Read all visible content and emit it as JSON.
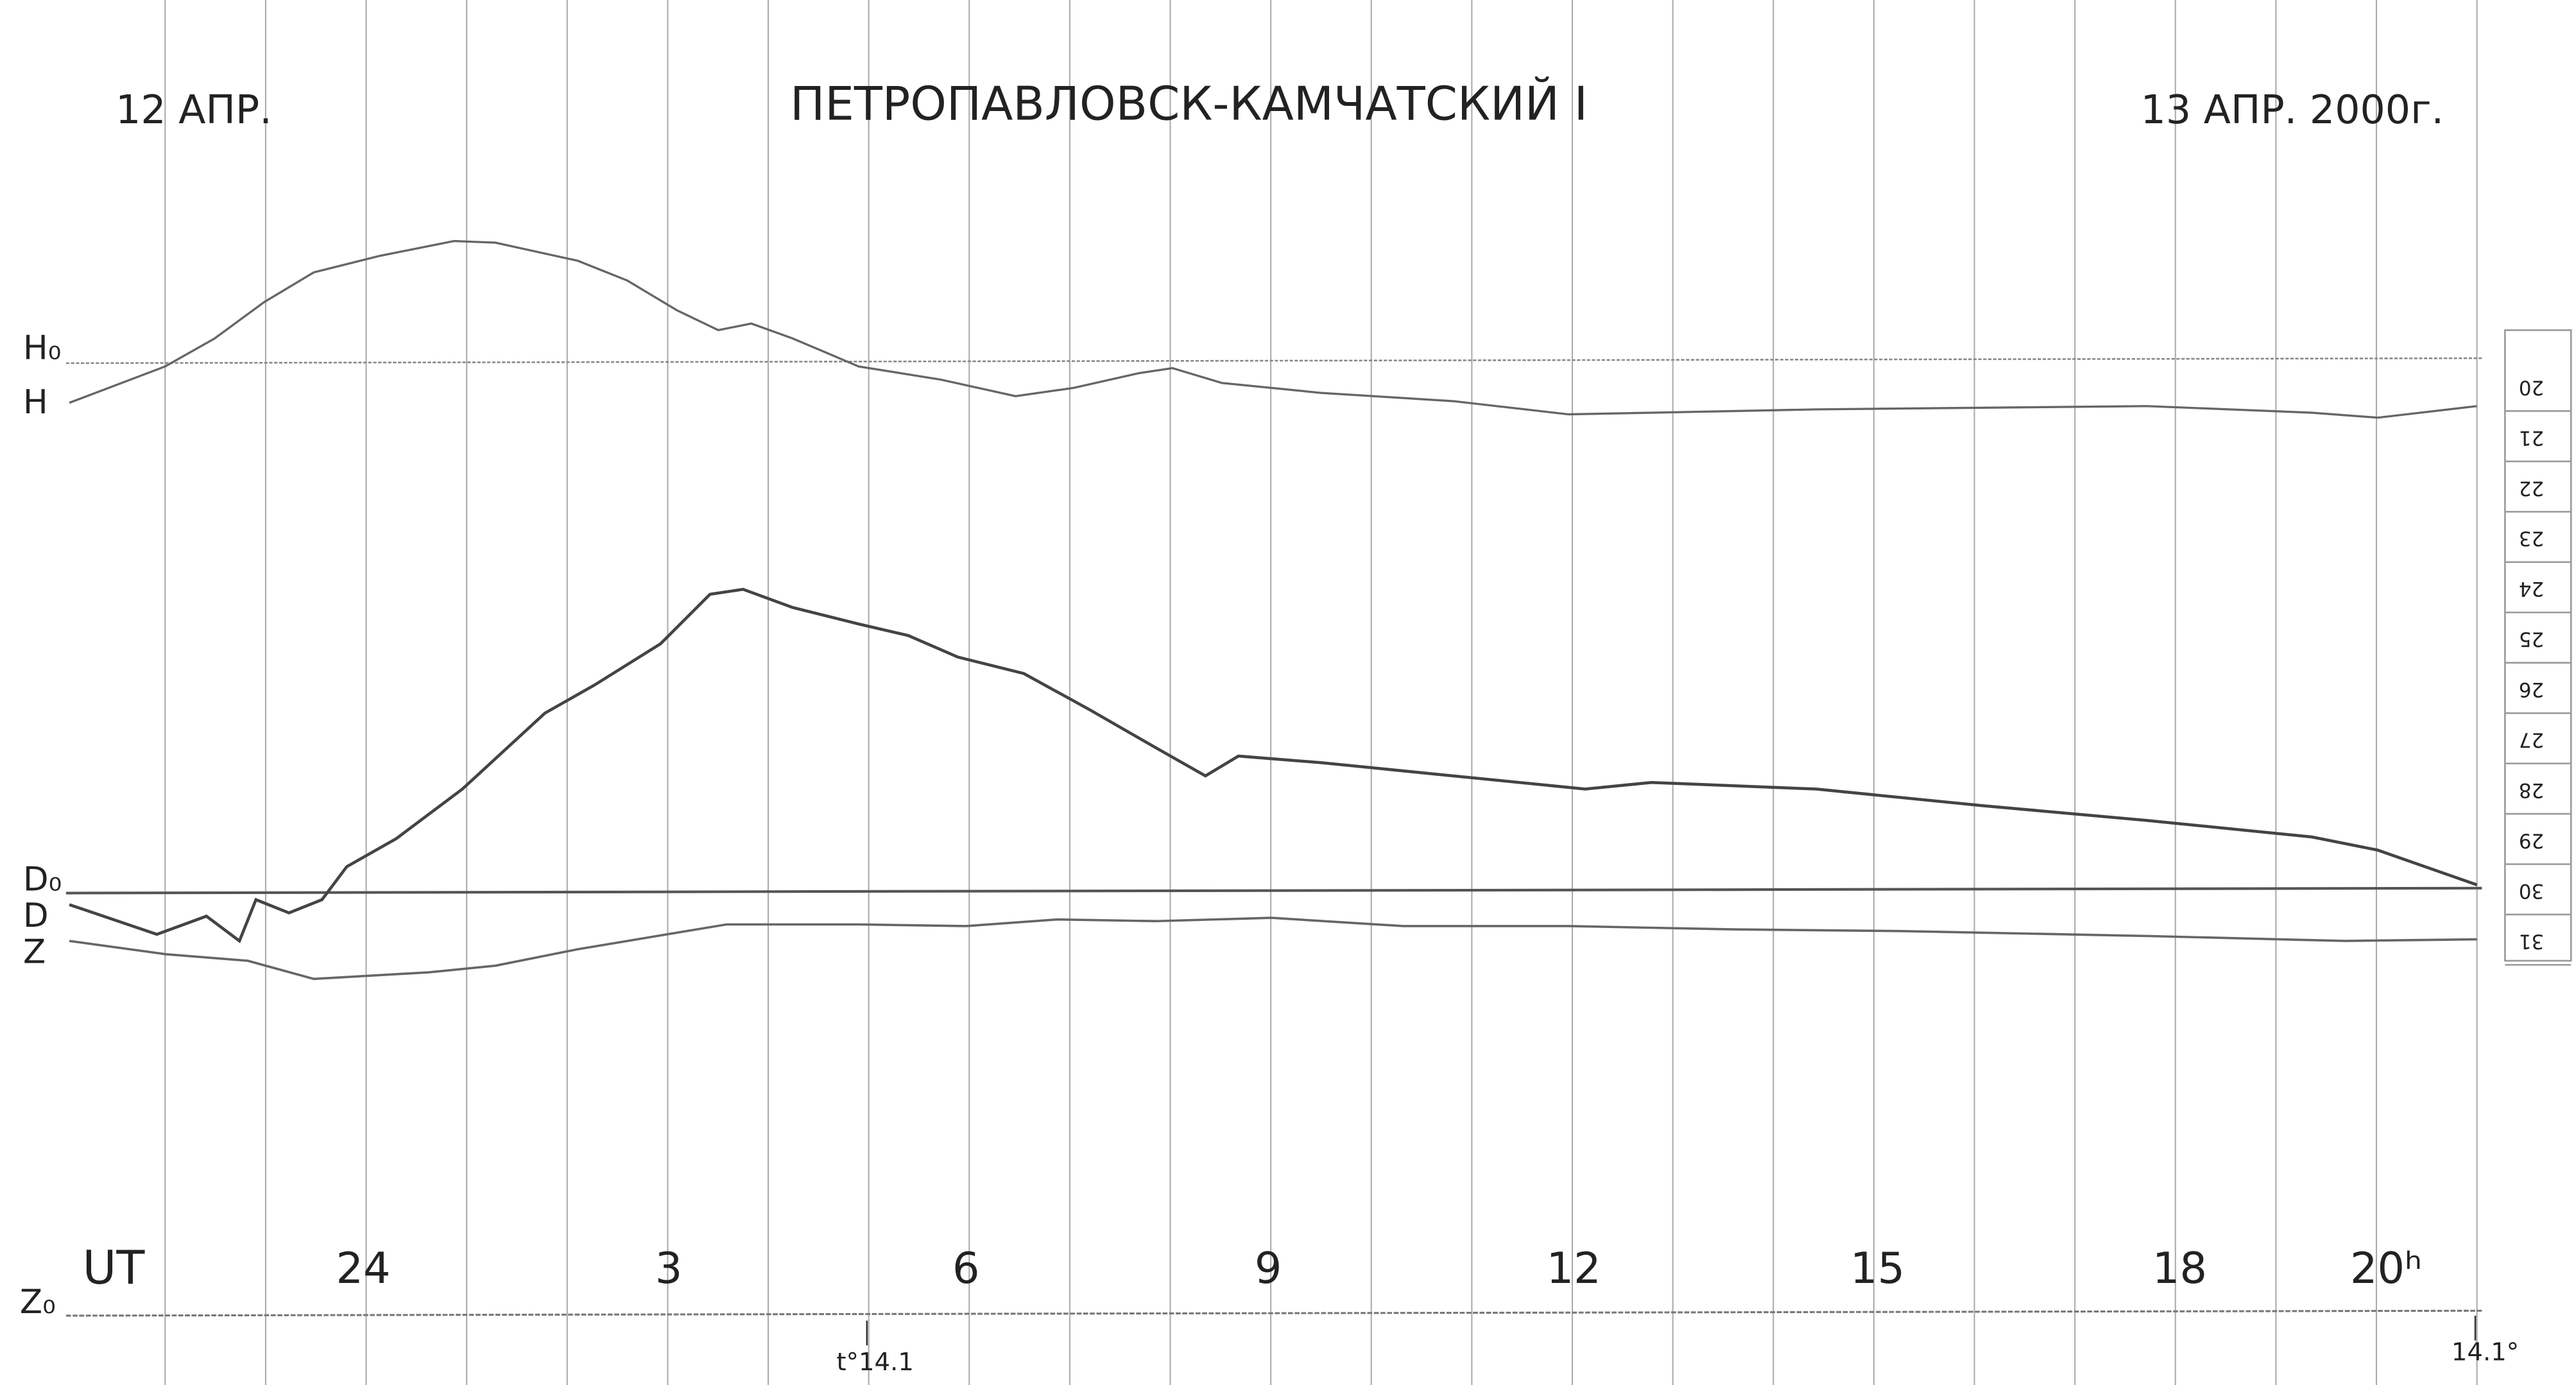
{
  "header": {
    "left_date": "12 АПР.",
    "title": "ПЕТРОПАВЛОВСК-КАМЧАТСКИЙ I",
    "right_date": "13 АПР. 2000г."
  },
  "traces": [
    {
      "baseline": "H₀",
      "label": "H"
    },
    {
      "baseline": "D₀",
      "label": "D"
    },
    {
      "label": "Z"
    }
  ],
  "baseline_z": "Z₀",
  "time_axis": {
    "unit": "UT",
    "hours": [
      "24",
      "3",
      "6",
      "9",
      "12",
      "15",
      "18",
      "20ʰ"
    ]
  },
  "temperatures": [
    "t°14.1",
    "14.1°"
  ],
  "scale": [
    "20",
    "21",
    "22",
    "23",
    "24",
    "25",
    "26",
    "27",
    "28",
    "29",
    "30",
    "31"
  ]
}
